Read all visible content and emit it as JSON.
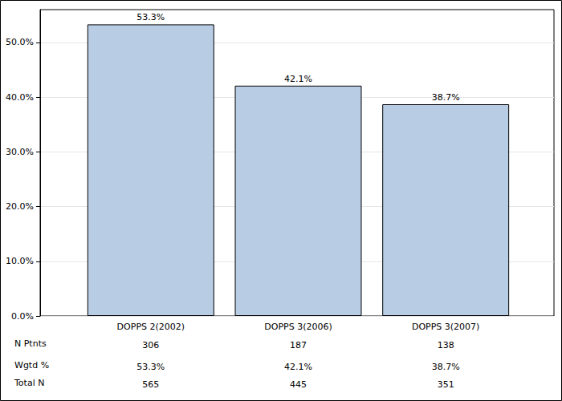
{
  "chart_data": {
    "type": "bar",
    "categories": [
      "DOPPS 2(2002)",
      "DOPPS 3(2006)",
      "DOPPS 3(2007)"
    ],
    "values": [
      53.3,
      42.1,
      38.7
    ],
    "value_labels": [
      "53.3%",
      "42.1%",
      "38.7%"
    ],
    "data_labels": true,
    "color": "#b8cce4",
    "ylim": [
      0,
      56
    ],
    "yticks": [
      {
        "value": 0,
        "label": "0.0%"
      },
      {
        "value": 10,
        "label": "10.0%"
      },
      {
        "value": 20,
        "label": "20.0%"
      },
      {
        "value": 30,
        "label": "30.0%"
      },
      {
        "value": 40,
        "label": "40.0%"
      },
      {
        "value": 50,
        "label": "50.0%"
      }
    ],
    "grid": true,
    "table": {
      "rows": [
        {
          "label": "N Ptnts",
          "values": [
            306,
            187,
            138
          ]
        },
        {
          "label": "Wgtd %",
          "values": [
            "53.3%",
            "42.1%",
            "38.7%"
          ]
        },
        {
          "label": "Total N",
          "values": [
            565,
            445,
            351
          ]
        }
      ]
    }
  }
}
